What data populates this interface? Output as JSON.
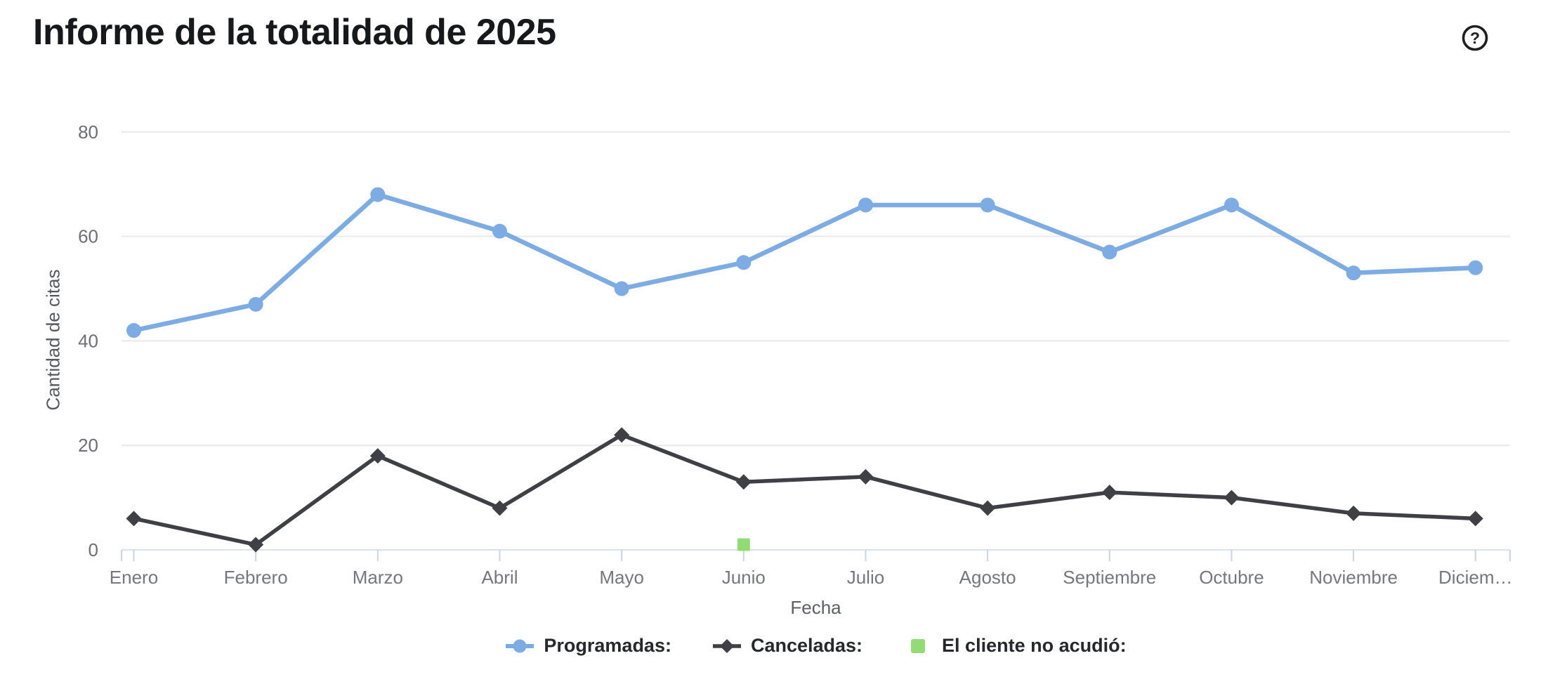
{
  "page": {
    "title": "Informe de la totalidad de 2025",
    "help_icon": "circled-question-mark"
  },
  "chart_data": {
    "type": "line",
    "title": "Informe de la totalidad de 2025",
    "xlabel": "Fecha",
    "ylabel": "Cantidad de citas",
    "ylim": [
      0,
      80
    ],
    "yticks": [
      0,
      20,
      40,
      60,
      80
    ],
    "grid": "horizontal",
    "legend_position": "bottom",
    "categories": [
      "Enero",
      "Febrero",
      "Marzo",
      "Abril",
      "Mayo",
      "Junio",
      "Julio",
      "Agosto",
      "Septiembre",
      "Octubre",
      "Noviembre",
      "Diciembre"
    ],
    "x_display_labels": [
      "Enero",
      "Febrero",
      "Marzo",
      "Abril",
      "Mayo",
      "Junio",
      "Julio",
      "Agosto",
      "Septiembre",
      "Octubre",
      "Noviembre",
      "Diciem…"
    ],
    "series": [
      {
        "name": "Programadas:",
        "slug": "programadas",
        "color": "#7dace5",
        "marker": "circle",
        "values": [
          42,
          47,
          68,
          61,
          50,
          55,
          66,
          66,
          57,
          66,
          53,
          54
        ]
      },
      {
        "name": "Canceladas:",
        "slug": "canceladas",
        "color": "#3f3f46",
        "marker": "diamond",
        "values": [
          6,
          1,
          18,
          8,
          22,
          13,
          14,
          8,
          11,
          10,
          7,
          6
        ]
      },
      {
        "name": "El cliente no acudió:",
        "slug": "no-acudio",
        "color": "#93db74",
        "marker": "square",
        "values": [
          null,
          null,
          null,
          null,
          null,
          1,
          null,
          null,
          null,
          null,
          null,
          null
        ]
      }
    ]
  },
  "colors": {
    "gridline": "#e9e9e9",
    "axis_line": "#dbe1ec",
    "tick_mark": "#c9d4e8",
    "y_tick_label": "#6e6f72",
    "x_tick_label": "#76777b",
    "title_text": "#16181b",
    "help_icon": "#1f1f1f"
  }
}
